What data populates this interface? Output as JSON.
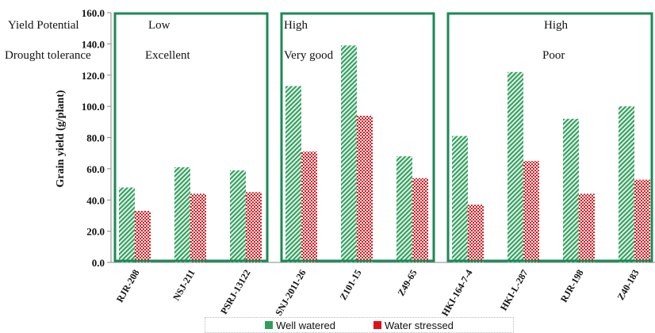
{
  "chart_data": {
    "type": "bar",
    "ylabel": "Grain yield (g/plant)",
    "ylim": [
      0,
      160
    ],
    "yticks": [
      "0.0",
      "20.0",
      "40.0",
      "60.0",
      "80.0",
      "100.0",
      "120.0",
      "140.0",
      "160.0"
    ],
    "categories": [
      "RJR-208",
      "NSJ-211",
      "PSRJ-13122",
      "SNJ-2011-26",
      "Z101-15",
      "Z49-65",
      "HKI-164-7-4",
      "HKI-L-287",
      "RJR-198",
      "Z40-183"
    ],
    "series": [
      {
        "name": "Well watered",
        "values": [
          48,
          61,
          59,
          113,
          139,
          68,
          81,
          122,
          92,
          100
        ],
        "color": "#2e9e5b"
      },
      {
        "name": "Water stressed",
        "values": [
          33,
          44,
          45,
          71,
          94,
          54,
          37,
          65,
          44,
          53
        ],
        "color": "#e0101a"
      }
    ],
    "row_labels": {
      "yield_potential": "Yield Potential",
      "drought_tolerance": "Drought tolerance"
    },
    "groups": [
      {
        "yield_potential": "Low",
        "drought_tolerance": "Excellent",
        "first": 0,
        "last": 2
      },
      {
        "yield_potential": "High",
        "drought_tolerance": "Very good",
        "first": 3,
        "last": 5
      },
      {
        "yield_potential": "High",
        "drought_tolerance": "Poor",
        "first": 6,
        "last": 9
      }
    ],
    "legend": [
      "Well watered",
      "Water stressed"
    ],
    "legend_position": "bottom",
    "grid": false
  }
}
